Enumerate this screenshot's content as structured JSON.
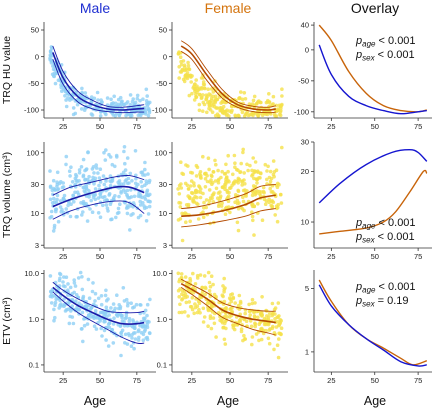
{
  "colors": {
    "male_points": "#8fd0f5",
    "male_line": "#1a1aa8",
    "female_points": "#f5e14a",
    "female_line": "#b34a00",
    "overlay_male": "#1515d0",
    "overlay_female": "#c8640a"
  },
  "columns": [
    {
      "title": "Male",
      "color": "#1f2fd1"
    },
    {
      "title": "Female",
      "color": "#d4740e"
    },
    {
      "title": "Overlay",
      "color": "#111111"
    }
  ],
  "x_axis": {
    "title": "Age",
    "ticks": [
      25,
      50,
      75
    ],
    "range": [
      12,
      88
    ]
  },
  "overlay_x_range": [
    15,
    83
  ],
  "chart_data": [
    {
      "type": "scatter",
      "row": "TRQ HU value",
      "ylabel": "TRQ HU value",
      "scale": "linear",
      "ylim": [
        -115,
        65
      ],
      "yticks": [
        -100,
        -50,
        0,
        50
      ],
      "ytick_labels": [
        "-100",
        "-50",
        "0",
        "50"
      ],
      "scatter_center": {
        "x": [
          15,
          25,
          35,
          50,
          65,
          80
        ],
        "y": [
          10,
          -50,
          -85,
          -100,
          -103,
          -100
        ]
      },
      "scatter_spread": 14,
      "male_fit": {
        "x": [
          18,
          25,
          35,
          45,
          55,
          65,
          75,
          80
        ],
        "y": [
          8,
          -40,
          -75,
          -90,
          -98,
          -100,
          -98,
          -97
        ],
        "lower": [
          -5,
          -52,
          -85,
          -98,
          -103,
          -105,
          -104,
          -104
        ],
        "upper": [
          20,
          -28,
          -65,
          -82,
          -93,
          -95,
          -92,
          -90
        ]
      },
      "female_fit": {
        "x": [
          18,
          25,
          35,
          45,
          55,
          65,
          75,
          80
        ],
        "y": [
          20,
          5,
          -35,
          -70,
          -90,
          -98,
          -100,
          -98
        ],
        "lower": [
          10,
          -5,
          -45,
          -78,
          -95,
          -103,
          -105,
          -104
        ],
        "upper": [
          30,
          15,
          -25,
          -62,
          -85,
          -93,
          -95,
          -92
        ]
      },
      "overlay": {
        "ylim": [
          -110,
          45
        ],
        "yticks": [
          -100,
          -50,
          0,
          40
        ],
        "ytick_labels": [
          "-100",
          "-50",
          "0",
          "40"
        ],
        "male": {
          "x": [
            18,
            25,
            35,
            45,
            55,
            65,
            75,
            80
          ],
          "y": [
            8,
            -40,
            -75,
            -90,
            -98,
            -103,
            -100,
            -98
          ]
        },
        "female": {
          "x": [
            18,
            25,
            35,
            45,
            55,
            65,
            75,
            80
          ],
          "y": [
            40,
            15,
            -35,
            -70,
            -90,
            -98,
            -100,
            -97
          ]
        }
      },
      "annotations": {
        "line1_sub": "age",
        "line1_rest": " < 0.001",
        "line2_sub": "sex",
        "line2_rest": " < 0.001"
      }
    },
    {
      "type": "scatter",
      "row": "TRQ volume",
      "ylabel": "TRQ volume (cm³)",
      "scale": "log",
      "ylim": [
        2.7,
        150
      ],
      "yticks": [
        3,
        10,
        30,
        100
      ],
      "ytick_labels": [
        "3",
        "10",
        "30",
        "100"
      ],
      "scatter_center": {
        "x": [
          15,
          25,
          40,
          60,
          80
        ],
        "y": [
          15,
          20,
          25,
          28,
          22
        ]
      },
      "scatter_spread": 0.45,
      "male_fit": {
        "x": [
          18,
          30,
          45,
          60,
          70,
          80
        ],
        "y": [
          13,
          17,
          22,
          27,
          27,
          22
        ],
        "lower": [
          8,
          11,
          14,
          16,
          15,
          10
        ],
        "upper": [
          20,
          27,
          33,
          40,
          42,
          36
        ]
      },
      "female_fit": {
        "x": [
          18,
          30,
          45,
          60,
          70,
          80
        ],
        "y": [
          9,
          9.5,
          11,
          14,
          18,
          20
        ],
        "lower": [
          6,
          6.5,
          7.5,
          9,
          11,
          12
        ],
        "upper": [
          12,
          13,
          16,
          21,
          28,
          30
        ]
      },
      "overlay": {
        "ylim": [
          7,
          30
        ],
        "yticks": [
          10,
          20,
          30
        ],
        "ytick_labels": [
          "10",
          "20",
          "30"
        ],
        "male": {
          "x": [
            18,
            30,
            45,
            60,
            70,
            75,
            80
          ],
          "y": [
            13,
            17,
            22,
            26,
            27,
            26,
            23
          ]
        },
        "female": {
          "x": [
            18,
            30,
            45,
            55,
            62,
            70,
            78,
            80
          ],
          "y": [
            8.5,
            8.8,
            9.2,
            10,
            11.5,
            15,
            20,
            19.5
          ]
        }
      },
      "annotations": {
        "line1_sub": "age",
        "line1_rest": " < 0.001",
        "line2_sub": "sex",
        "line2_rest": " < 0.001"
      }
    },
    {
      "type": "scatter",
      "row": "ETV",
      "ylabel": "ETV (cm³)",
      "scale": "log",
      "ylim": [
        0.07,
        12
      ],
      "yticks": [
        0.1,
        1.0,
        10.0
      ],
      "ytick_labels": [
        "0.1",
        "1.0",
        "10.0"
      ],
      "scatter_center": {
        "x": [
          15,
          25,
          40,
          55,
          70,
          80
        ],
        "y": [
          6,
          3.5,
          1.8,
          1.0,
          0.8,
          0.7
        ]
      },
      "scatter_spread": 0.5,
      "male_fit": {
        "x": [
          18,
          25,
          35,
          45,
          55,
          65,
          75,
          80
        ],
        "y": [
          5,
          3.3,
          2.0,
          1.4,
          1.0,
          0.8,
          0.8,
          0.85
        ],
        "lower": [
          4,
          2.5,
          1.4,
          0.9,
          0.6,
          0.4,
          0.3,
          0.3
        ],
        "upper": [
          6.5,
          4.3,
          2.8,
          2.0,
          1.5,
          1.4,
          1.4,
          1.5
        ]
      },
      "female_fit": {
        "x": [
          18,
          25,
          35,
          45,
          55,
          65,
          75,
          80
        ],
        "y": [
          6,
          4.5,
          2.8,
          1.6,
          1.2,
          1.0,
          0.9,
          0.85
        ],
        "lower": [
          5,
          3.5,
          2.0,
          1.1,
          0.8,
          0.6,
          0.5,
          0.45
        ],
        "upper": [
          7.5,
          5.7,
          3.8,
          2.3,
          1.8,
          1.6,
          1.5,
          1.5
        ]
      },
      "overlay": {
        "ylim": [
          0.6,
          8
        ],
        "yticks": [
          1,
          5
        ],
        "ytick_labels": [
          "1",
          "5"
        ],
        "male": {
          "x": [
            18,
            25,
            35,
            45,
            55,
            65,
            75,
            80
          ],
          "y": [
            5.5,
            3.2,
            2.0,
            1.4,
            1.05,
            0.78,
            0.7,
            0.72
          ]
        },
        "female": {
          "x": [
            18,
            25,
            35,
            45,
            55,
            65,
            72,
            80
          ],
          "y": [
            6.2,
            3.6,
            2.0,
            1.4,
            1.1,
            0.85,
            0.72,
            0.8
          ]
        }
      },
      "annotations": {
        "line1_sub": "age",
        "line1_rest": " < 0.001",
        "line2_sub": "sex",
        "line2_rest": " = 0.19"
      }
    }
  ]
}
